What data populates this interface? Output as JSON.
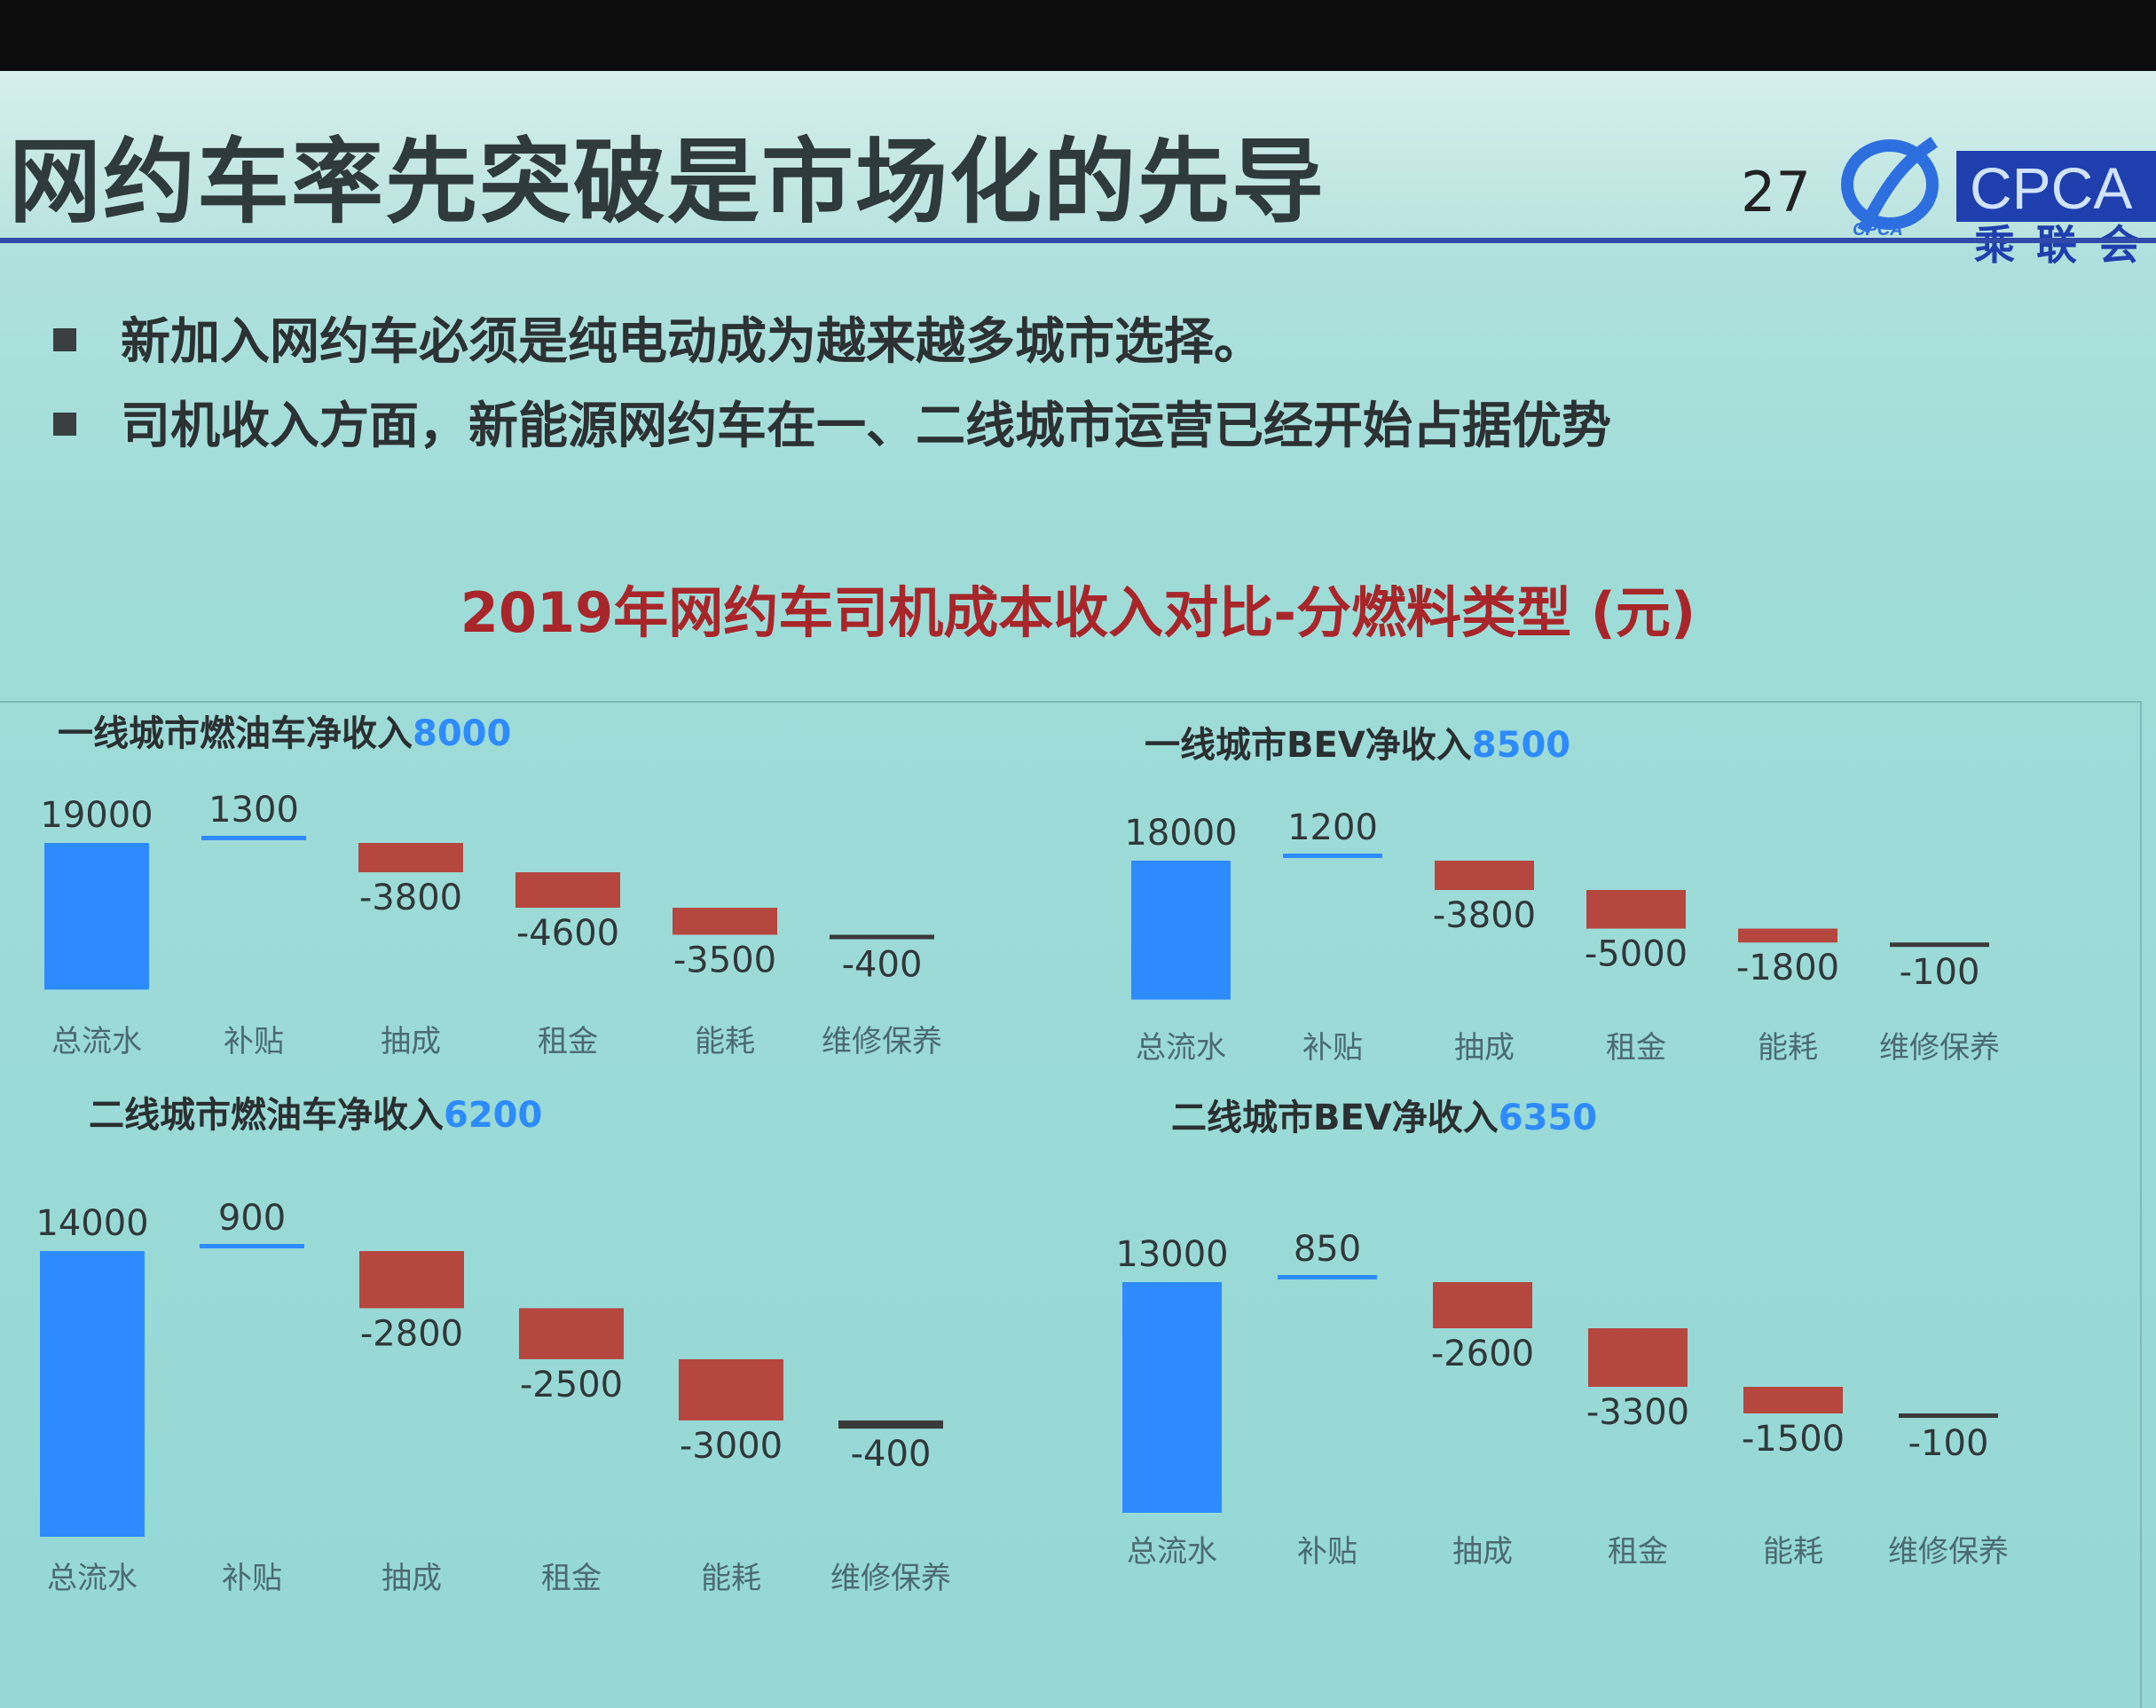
{
  "title": "网约车率先突破是市场化的先导",
  "page_number": "27",
  "logo": {
    "text": "CPCA",
    "subtext": "CPCA",
    "cn": "乘联会",
    "icon": "cpca-logo-icon"
  },
  "bullets": [
    "新加入网约车必须是纯电动成为越来越多城市选择。",
    "司机收入方面，新能源网约车在一、二线城市运营已经开始占据优势"
  ],
  "colors": {
    "positive": "#2e8bff",
    "negative": "#b5473f",
    "title_red": "#a8262a",
    "rule": "#2f4aa8"
  },
  "chart_data": {
    "title": "2019年网约车司机成本收入对比-分燃料类型 (元)",
    "charts": [
      {
        "type": "bar",
        "label": "一线城市燃油车净收入",
        "net": "8000",
        "categories": [
          "总流水",
          "补贴",
          "抽成",
          "租金",
          "能耗",
          "维修保养"
        ],
        "values": [
          19000,
          1300,
          -3800,
          -4600,
          -3500,
          -400
        ],
        "value_labels": [
          "19000",
          "1300",
          "-3800",
          "-4600",
          "-3500",
          "-400"
        ]
      },
      {
        "type": "bar",
        "label": "一线城市BEV净收入",
        "net": "8500",
        "categories": [
          "总流水",
          "补贴",
          "抽成",
          "租金",
          "能耗",
          "维修保养"
        ],
        "values": [
          18000,
          1200,
          -3800,
          -5000,
          -1800,
          -100
        ],
        "value_labels": [
          "18000",
          "1200",
          "-3800",
          "-5000",
          "-1800",
          "-100"
        ]
      },
      {
        "type": "bar",
        "label": "二线城市燃油车净收入",
        "net": "6200",
        "categories": [
          "总流水",
          "补贴",
          "抽成",
          "租金",
          "能耗",
          "维修保养"
        ],
        "values": [
          14000,
          900,
          -2800,
          -2500,
          -3000,
          -400
        ],
        "value_labels": [
          "14000",
          "900",
          "-2800",
          "-2500",
          "-3000",
          "-400"
        ]
      },
      {
        "type": "bar",
        "label": "二线城市BEV净收入",
        "net": "6350",
        "categories": [
          "总流水",
          "补贴",
          "抽成",
          "租金",
          "能耗",
          "维修保养"
        ],
        "values": [
          13000,
          850,
          -2600,
          -3300,
          -1500,
          -100
        ],
        "value_labels": [
          "13000",
          "850",
          "-2600",
          "-3300",
          "-1500",
          "-100"
        ]
      }
    ]
  }
}
